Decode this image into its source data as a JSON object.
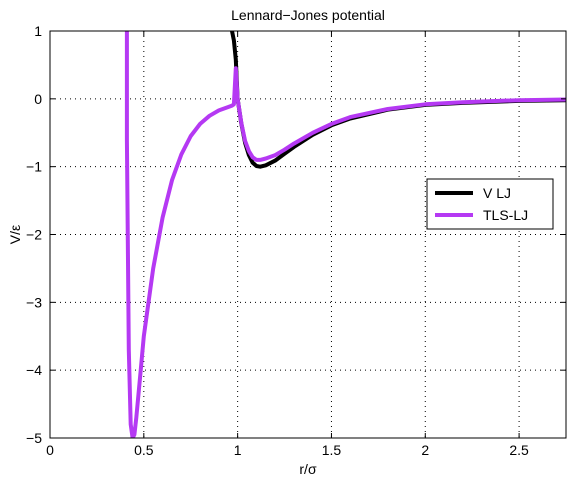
{
  "chart_data": {
    "type": "line",
    "title": "Lennard−Jones potential",
    "xlabel": "r/σ",
    "ylabel": "V/ε",
    "xlim": [
      0,
      2.75
    ],
    "ylim": [
      -5,
      1
    ],
    "xticks": [
      0,
      0.5,
      1,
      1.5,
      2,
      2.5
    ],
    "xtick_labels": [
      "0",
      "0.5",
      "1",
      "1.5",
      "2",
      "2.5"
    ],
    "yticks": [
      1,
      0,
      -1,
      -2,
      -3,
      -4,
      -5
    ],
    "ytick_labels": [
      "1",
      "0",
      "−1",
      "−2",
      "−3",
      "−4",
      "−5"
    ],
    "grid": true,
    "legend_position": "right",
    "series": [
      {
        "name": "V LJ",
        "color": "#000000",
        "x": [
          0.97,
          0.98,
          0.99,
          1.0,
          1.02,
          1.04,
          1.06,
          1.08,
          1.1,
          1.12,
          1.15,
          1.2,
          1.25,
          1.3,
          1.4,
          1.5,
          1.6,
          1.8,
          2.0,
          2.2,
          2.5,
          2.75
        ],
        "y": [
          1.0,
          0.86,
          0.58,
          0.0,
          -0.37,
          -0.65,
          -0.83,
          -0.94,
          -0.99,
          -1.0,
          -0.98,
          -0.91,
          -0.81,
          -0.71,
          -0.53,
          -0.39,
          -0.29,
          -0.16,
          -0.09,
          -0.06,
          -0.03,
          -0.02
        ]
      },
      {
        "name": "TLS-LJ",
        "color": "#b539f3",
        "x": [
          0.41,
          0.41,
          0.42,
          0.43,
          0.44,
          0.45,
          0.46,
          0.48,
          0.5,
          0.55,
          0.6,
          0.65,
          0.7,
          0.75,
          0.8,
          0.85,
          0.9,
          0.95,
          0.97,
          0.98,
          0.99,
          1.0,
          1.02,
          1.04,
          1.06,
          1.08,
          1.1,
          1.12,
          1.15,
          1.2,
          1.25,
          1.3,
          1.4,
          1.5,
          1.6,
          1.8,
          2.0,
          2.2,
          2.5,
          2.75
        ],
        "y": [
          1.0,
          -0.6,
          -3.7,
          -4.8,
          -5.0,
          -4.95,
          -4.7,
          -4.1,
          -3.5,
          -2.5,
          -1.75,
          -1.2,
          -0.82,
          -0.55,
          -0.37,
          -0.25,
          -0.17,
          -0.12,
          -0.1,
          -0.08,
          0.45,
          0.0,
          -0.36,
          -0.62,
          -0.77,
          -0.86,
          -0.9,
          -0.9,
          -0.88,
          -0.83,
          -0.75,
          -0.66,
          -0.5,
          -0.37,
          -0.27,
          -0.15,
          -0.08,
          -0.05,
          -0.02,
          -0.01
        ]
      }
    ]
  }
}
